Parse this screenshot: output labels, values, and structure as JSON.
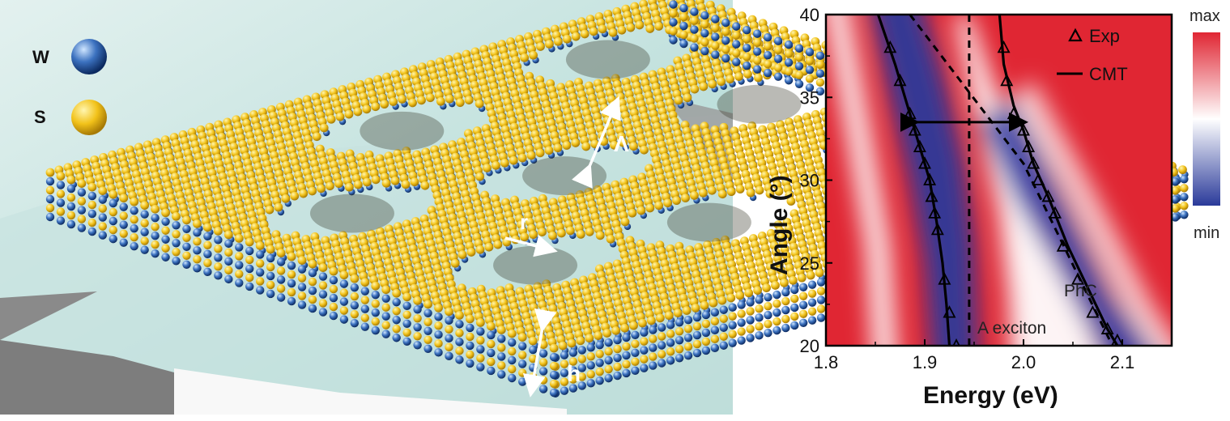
{
  "figure": {
    "left_panel": {
      "legend": [
        {
          "label": "W",
          "icon": "tungsten-atom-sphere",
          "color": "#2a5aa0"
        },
        {
          "label": "S",
          "icon": "sulfur-atom-sphere",
          "color": "#f2c21a"
        }
      ],
      "dimension_labels": {
        "period": "Λ",
        "radius": "r",
        "thickness": "h"
      },
      "colors": {
        "substrate": "#b8dcd8",
        "sulfur": "#f2c21a",
        "tungsten": "#2a5aa0",
        "frame": "#8a8a8a"
      }
    },
    "colorbar": {
      "max_label": "max",
      "min_label": "min",
      "colors": {
        "high": "#e02633",
        "mid": "#ffffff",
        "low": "#2a3a9a"
      }
    }
  },
  "chart_data": {
    "type": "heatmap",
    "title": "",
    "xlabel": "Energy (eV)",
    "ylabel": "Angle (°)",
    "xlim": [
      1.8,
      2.15
    ],
    "ylim": [
      20,
      40
    ],
    "x_ticks": [
      1.8,
      1.9,
      2.0,
      2.1
    ],
    "x_tick_labels": [
      "1.8",
      "1.9",
      "2.0",
      "2.1"
    ],
    "y_ticks": [
      20,
      25,
      30,
      35,
      40
    ],
    "y_tick_labels": [
      "20",
      "25",
      "30",
      "35",
      "40"
    ],
    "legend": {
      "placement": "top-right",
      "entries": [
        {
          "label": "Exp",
          "marker": "open-triangle"
        },
        {
          "label": "CMT",
          "marker": "solid-line"
        }
      ]
    },
    "series": [
      {
        "name": "Exp",
        "kind": "scatter",
        "marker": "triangle",
        "points": [
          [
            1.865,
            38
          ],
          [
            1.875,
            36
          ],
          [
            1.885,
            34
          ],
          [
            1.89,
            33
          ],
          [
            1.895,
            32
          ],
          [
            1.9,
            31
          ],
          [
            1.905,
            30
          ],
          [
            1.907,
            29
          ],
          [
            1.91,
            28
          ],
          [
            1.913,
            27
          ],
          [
            1.92,
            24
          ],
          [
            1.925,
            22
          ],
          [
            1.932,
            20
          ],
          [
            1.98,
            38
          ],
          [
            1.983,
            36
          ],
          [
            1.99,
            34
          ],
          [
            2.0,
            33
          ],
          [
            2.005,
            32
          ],
          [
            2.01,
            31
          ],
          [
            2.015,
            30
          ],
          [
            2.025,
            29
          ],
          [
            2.032,
            28
          ],
          [
            2.04,
            26
          ],
          [
            2.055,
            24
          ],
          [
            2.07,
            22
          ],
          [
            2.085,
            21
          ],
          [
            2.095,
            20.3
          ]
        ]
      },
      {
        "name": "CMT",
        "kind": "line",
        "branch": "lower",
        "points": [
          [
            1.85,
            40.5
          ],
          [
            1.87,
            37
          ],
          [
            1.885,
            34
          ],
          [
            1.895,
            32
          ],
          [
            1.905,
            30
          ],
          [
            1.912,
            27.5
          ],
          [
            1.918,
            25
          ],
          [
            1.922,
            22.5
          ],
          [
            1.925,
            20
          ]
        ]
      },
      {
        "name": "CMT",
        "kind": "line",
        "branch": "upper",
        "points": [
          [
            1.975,
            40.5
          ],
          [
            1.98,
            37
          ],
          [
            1.99,
            34.5
          ],
          [
            2.0,
            33
          ],
          [
            2.01,
            31
          ],
          [
            2.025,
            29
          ],
          [
            2.045,
            26
          ],
          [
            2.065,
            23.5
          ],
          [
            2.085,
            21
          ],
          [
            2.095,
            20
          ]
        ]
      },
      {
        "kind": "dashed-line",
        "label": "PhC",
        "points": [
          [
            1.885,
            40
          ],
          [
            2.0,
            31
          ],
          [
            2.09,
            20
          ]
        ]
      },
      {
        "kind": "dashed-line",
        "label": "A exciton",
        "points": [
          [
            1.945,
            40
          ],
          [
            1.945,
            20
          ]
        ]
      }
    ],
    "annotations": [
      {
        "text": "PhC",
        "at": [
          2.04,
          23
        ]
      },
      {
        "text": "A exciton",
        "at": [
          1.958,
          20.9
        ]
      },
      {
        "kind": "double-arrow",
        "from": [
          1.89,
          33.5
        ],
        "to": [
          2.0,
          33.5
        ]
      }
    ],
    "colorbar": {
      "max_label": "max",
      "min_label": "min"
    },
    "grid": false
  }
}
